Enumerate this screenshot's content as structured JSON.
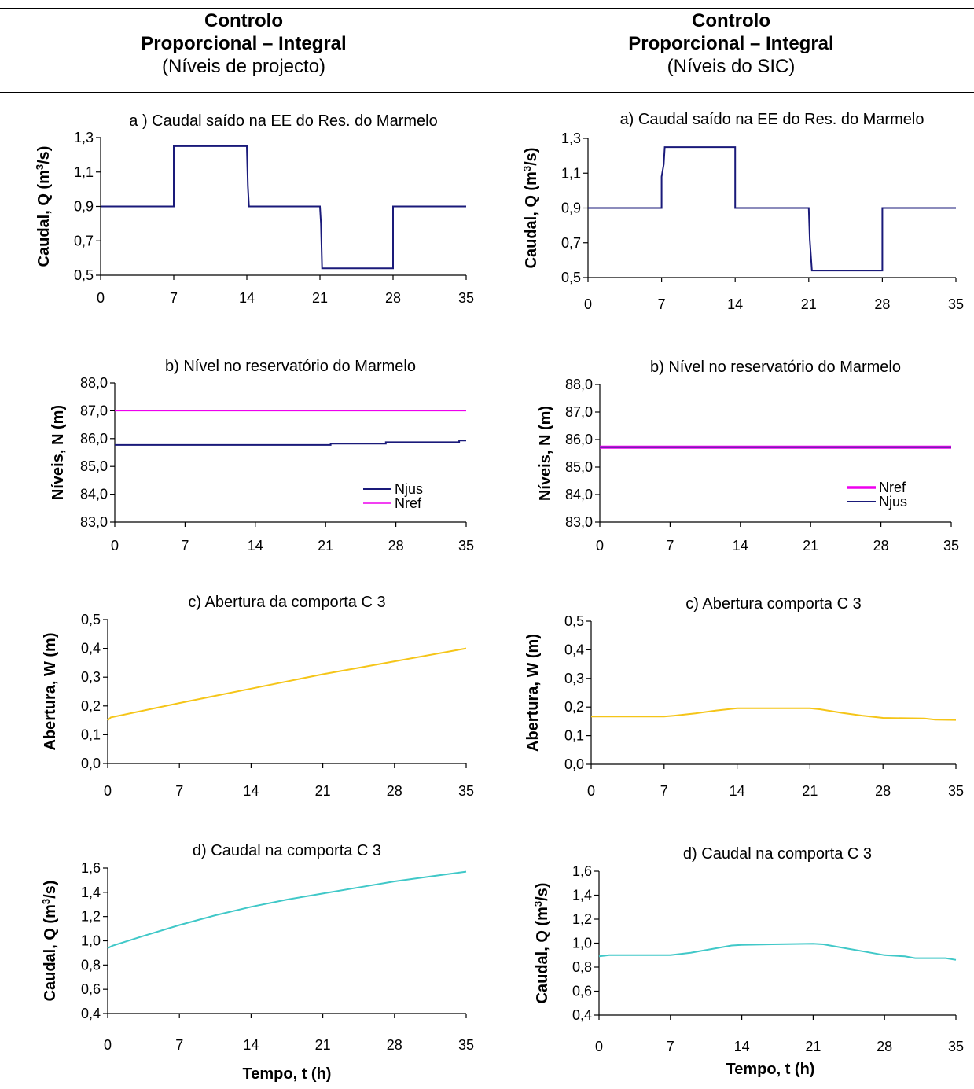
{
  "columns": [
    {
      "line1": "Controlo",
      "line2": "Proporcional – Integral",
      "line3": "(Níveis de projecto)"
    },
    {
      "line1": "Controlo",
      "line2": "Proporcional – Integral",
      "line3": "(Níveis do SIC)"
    }
  ],
  "x_axis_label": "Tempo, t (h)",
  "colors": {
    "Njus": "#1a1a7a",
    "Nref": "#ee00ee",
    "W": "#f5c518",
    "Q_gate": "#40c8c8",
    "Q_pump": "#1a1a7a",
    "Nref_sic": "#8a2be2"
  },
  "chart_data": [
    {
      "id": "a-left",
      "type": "line",
      "title": "a ) Caudal saído na EE do Res. do Marmelo",
      "ylabel_prefix": "Caudal, Q (m",
      "ylabel_sup": "3",
      "ylabel_suffix": "/s)",
      "ylim": [
        0.5,
        1.3
      ],
      "yticks": [
        "0,5",
        "0,7",
        "0,9",
        "1,1",
        "1,3"
      ],
      "xlim": [
        0,
        35
      ],
      "xticks": [
        "0",
        "7",
        "14",
        "21",
        "28",
        "35"
      ],
      "series": [
        {
          "color": "#1a1a7a",
          "width": 2,
          "points": [
            [
              0,
              0.9
            ],
            [
              7,
              0.9
            ],
            [
              7,
              1.25
            ],
            [
              14,
              1.25
            ],
            [
              14.1,
              1.02
            ],
            [
              14.2,
              0.9
            ],
            [
              21,
              0.9
            ],
            [
              21.1,
              0.8
            ],
            [
              21.2,
              0.54
            ],
            [
              28,
              0.54
            ],
            [
              28,
              0.9
            ],
            [
              35,
              0.9
            ]
          ]
        }
      ]
    },
    {
      "id": "a-right",
      "type": "line",
      "title": "a) Caudal saído na EE do Res. do Marmelo",
      "ylabel_prefix": "Caudal, Q (m",
      "ylabel_sup": "3",
      "ylabel_suffix": "/s)",
      "ylim": [
        0.5,
        1.3
      ],
      "yticks": [
        "0,5",
        "0,7",
        "0,9",
        "1,1",
        "1,3"
      ],
      "xlim": [
        0,
        35
      ],
      "xticks": [
        "0",
        "7",
        "14",
        "21",
        "28",
        "35"
      ],
      "series": [
        {
          "color": "#1a1a7a",
          "width": 2,
          "points": [
            [
              0,
              0.9
            ],
            [
              7,
              0.9
            ],
            [
              7,
              1.08
            ],
            [
              7.2,
              1.15
            ],
            [
              7.3,
              1.25
            ],
            [
              14,
              1.25
            ],
            [
              14,
              0.9
            ],
            [
              21,
              0.9
            ],
            [
              21.1,
              0.72
            ],
            [
              21.3,
              0.54
            ],
            [
              28,
              0.54
            ],
            [
              28,
              0.9
            ],
            [
              35,
              0.9
            ]
          ]
        }
      ]
    },
    {
      "id": "b-left",
      "type": "line",
      "title": "b) Nível no reservatório do Marmelo",
      "ylabel": "Níveis, N (m)",
      "ylim": [
        83.0,
        88.0
      ],
      "yticks": [
        "83,0",
        "84,0",
        "85,0",
        "86,0",
        "87,0",
        "88,0"
      ],
      "xlim": [
        0,
        35
      ],
      "xticks": [
        "0",
        "7",
        "14",
        "21",
        "28",
        "35"
      ],
      "legend": [
        {
          "name": "Njus",
          "color": "#1a1a7a",
          "width": 2
        },
        {
          "name": "Nref",
          "color": "#ee00ee",
          "width": 1.5
        }
      ],
      "series": [
        {
          "name": "Nref",
          "color": "#ee00ee",
          "width": 1.5,
          "points": [
            [
              0,
              87.0
            ],
            [
              35,
              87.0
            ]
          ]
        },
        {
          "name": "Njus",
          "color": "#1a1a7a",
          "width": 2,
          "points": [
            [
              0,
              85.77
            ],
            [
              21.5,
              85.77
            ],
            [
              21.5,
              85.82
            ],
            [
              27,
              85.82
            ],
            [
              27,
              85.87
            ],
            [
              34.3,
              85.87
            ],
            [
              34.3,
              85.93
            ],
            [
              35,
              85.93
            ]
          ]
        }
      ]
    },
    {
      "id": "b-right",
      "type": "line",
      "title": "b) Nível no reservatório do Marmelo",
      "ylabel": "Níveis, N (m)",
      "ylim": [
        83.0,
        88.0
      ],
      "yticks": [
        "83,0",
        "84,0",
        "85,0",
        "86,0",
        "87,0",
        "88,0"
      ],
      "xlim": [
        0,
        35
      ],
      "xticks": [
        "0",
        "7",
        "14",
        "21",
        "28",
        "35"
      ],
      "legend": [
        {
          "name": "Nref",
          "color": "#ee00ee",
          "width": 3.5
        },
        {
          "name": "Njus",
          "color": "#1a1a7a",
          "width": 2
        }
      ],
      "series": [
        {
          "name": "Nref",
          "color": "#ee00ee",
          "width": 4,
          "points": [
            [
              0,
              85.72
            ],
            [
              35,
              85.72
            ]
          ]
        },
        {
          "name": "Njus",
          "color": "#4b2a9e",
          "width": 2,
          "points": [
            [
              0,
              85.72
            ],
            [
              35,
              85.72
            ]
          ]
        }
      ]
    },
    {
      "id": "c-left",
      "type": "line",
      "title": "c) Abertura da comporta C 3",
      "ylabel": "Abertura, W (m)",
      "ylim": [
        0.0,
        0.5
      ],
      "yticks": [
        "0,0",
        "0,1",
        "0,2",
        "0,3",
        "0,4",
        "0,5"
      ],
      "xlim": [
        0,
        35
      ],
      "xticks": [
        "0",
        "7",
        "14",
        "21",
        "28",
        "35"
      ],
      "series": [
        {
          "color": "#f5c518",
          "width": 2,
          "points": [
            [
              0,
              0.15
            ],
            [
              0.3,
              0.16
            ],
            [
              7,
              0.21
            ],
            [
              14,
              0.26
            ],
            [
              21,
              0.31
            ],
            [
              28,
              0.355
            ],
            [
              35,
              0.4
            ]
          ]
        }
      ]
    },
    {
      "id": "c-right",
      "type": "line",
      "title": "c) Abertura comporta C 3",
      "ylabel": "Abertura, W (m)",
      "ylim": [
        0.0,
        0.5
      ],
      "yticks": [
        "0,0",
        "0,1",
        "0,2",
        "0,3",
        "0,4",
        "0,5"
      ],
      "xlim": [
        0,
        35
      ],
      "xticks": [
        "0",
        "7",
        "14",
        "21",
        "28",
        "35"
      ],
      "series": [
        {
          "color": "#f5c518",
          "width": 2,
          "points": [
            [
              0,
              0.167
            ],
            [
              7,
              0.167
            ],
            [
              8,
              0.17
            ],
            [
              10,
              0.178
            ],
            [
              12,
              0.188
            ],
            [
              14,
              0.196
            ],
            [
              21,
              0.196
            ],
            [
              22,
              0.192
            ],
            [
              24,
              0.18
            ],
            [
              26,
              0.17
            ],
            [
              28,
              0.162
            ],
            [
              32,
              0.16
            ],
            [
              33,
              0.156
            ],
            [
              35,
              0.155
            ]
          ]
        }
      ]
    },
    {
      "id": "d-left",
      "type": "line",
      "title": "d) Caudal na comporta C 3",
      "ylabel_prefix": "Caudal, Q (m",
      "ylabel_sup": "3",
      "ylabel_suffix": "/s)",
      "ylim": [
        0.4,
        1.6
      ],
      "yticks": [
        "0,4",
        "0,6",
        "0,8",
        "1,0",
        "1,2",
        "1,4",
        "1,6"
      ],
      "xlim": [
        0,
        35
      ],
      "xticks": [
        "0",
        "7",
        "14",
        "21",
        "28",
        "35"
      ],
      "series": [
        {
          "color": "#40c8c8",
          "width": 2,
          "points": [
            [
              0,
              0.94
            ],
            [
              0.5,
              0.96
            ],
            [
              3.5,
              1.04
            ],
            [
              7,
              1.13
            ],
            [
              10.5,
              1.21
            ],
            [
              14,
              1.28
            ],
            [
              17.5,
              1.34
            ],
            [
              21,
              1.39
            ],
            [
              24.5,
              1.44
            ],
            [
              28,
              1.49
            ],
            [
              31.5,
              1.53
            ],
            [
              35,
              1.57
            ]
          ]
        }
      ]
    },
    {
      "id": "d-right",
      "type": "line",
      "title": "d) Caudal na comporta C 3",
      "ylabel_prefix": "Caudal, Q (m",
      "ylabel_sup": "3",
      "ylabel_suffix": "/s)",
      "ylim": [
        0.4,
        1.6
      ],
      "yticks": [
        "0,4",
        "0,6",
        "0,8",
        "1,0",
        "1,2",
        "1,4",
        "1,6"
      ],
      "xlim": [
        0,
        35
      ],
      "xticks": [
        "0",
        "7",
        "14",
        "21",
        "28",
        "35"
      ],
      "series": [
        {
          "color": "#40c8c8",
          "width": 2,
          "points": [
            [
              0,
              0.89
            ],
            [
              1,
              0.9
            ],
            [
              7,
              0.9
            ],
            [
              9,
              0.92
            ],
            [
              11,
              0.95
            ],
            [
              13,
              0.98
            ],
            [
              14,
              0.985
            ],
            [
              17,
              0.99
            ],
            [
              21,
              0.995
            ],
            [
              22,
              0.99
            ],
            [
              24,
              0.96
            ],
            [
              26,
              0.93
            ],
            [
              28,
              0.9
            ],
            [
              30,
              0.89
            ],
            [
              31,
              0.875
            ],
            [
              34,
              0.875
            ],
            [
              35,
              0.86
            ]
          ]
        }
      ]
    }
  ]
}
